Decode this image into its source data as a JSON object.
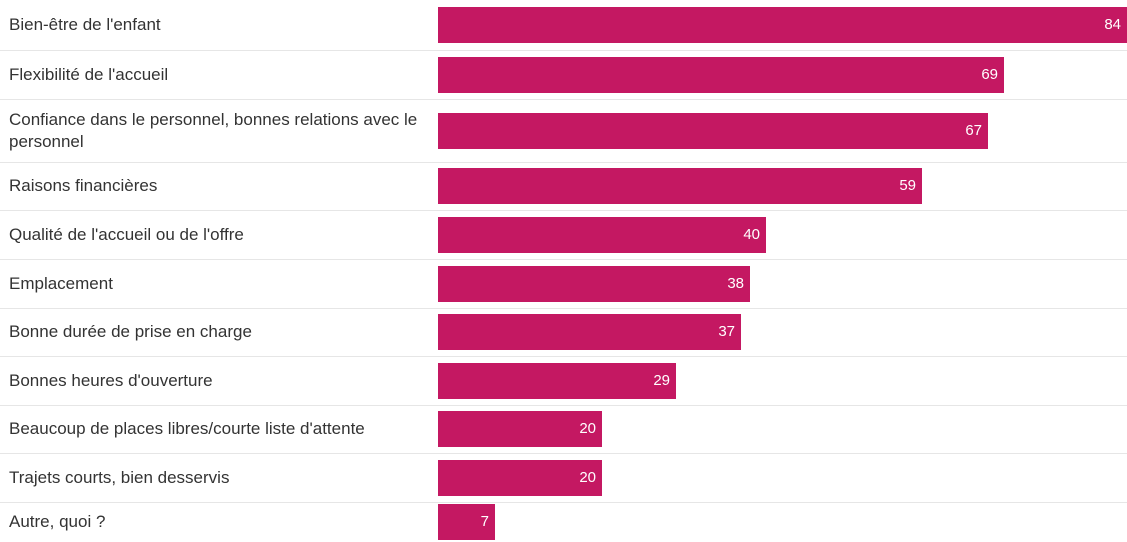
{
  "chart_data": {
    "type": "bar",
    "orientation": "horizontal",
    "categories": [
      "Bien-être de l'enfant",
      "Flexibilité de l'accueil",
      "Confiance dans le personnel, bonnes relations avec le personnel",
      "Raisons financières",
      "Qualité de l'accueil ou de l'offre",
      "Emplacement",
      "Bonne durée de prise en charge",
      "Bonnes heures d'ouverture",
      "Beaucoup de places libres/courte liste d'attente",
      "Trajets courts, bien desservis",
      "Autre, quoi ?"
    ],
    "values": [
      84,
      69,
      67,
      59,
      40,
      38,
      37,
      29,
      20,
      20,
      7
    ],
    "xlim": [
      0,
      84
    ],
    "data_labels": true,
    "grid": false,
    "bar_color": "#c41862",
    "label_color": "#ffffff",
    "text_color": "#333333"
  }
}
